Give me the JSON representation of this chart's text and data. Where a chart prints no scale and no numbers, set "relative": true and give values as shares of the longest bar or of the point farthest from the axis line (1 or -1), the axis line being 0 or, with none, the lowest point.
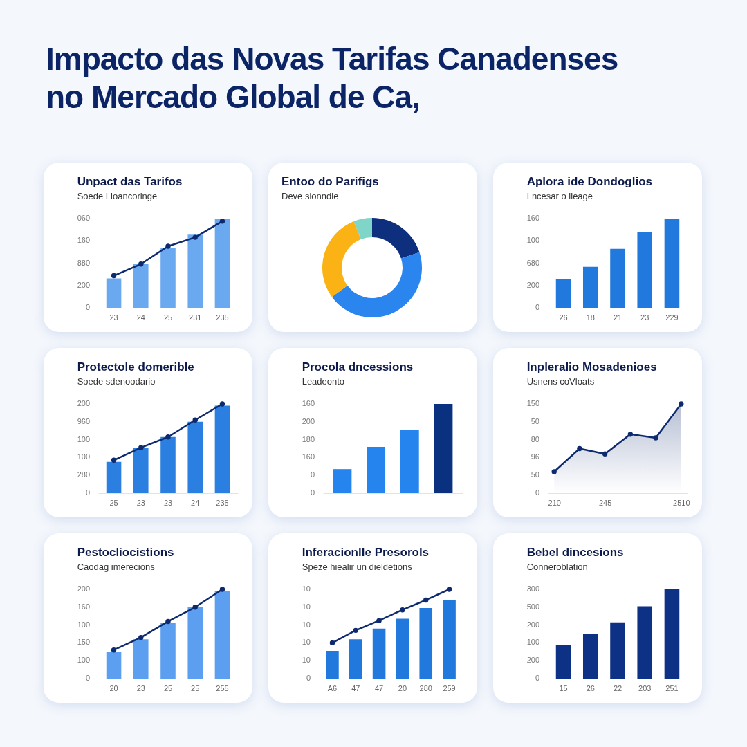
{
  "chart_data": [
    {
      "type": "other",
      "title": "Impacto das Novas Tarifas Canadenses no Mercado Global de Ca,"
    },
    {
      "type": "bar",
      "title": "Unpact das Tarifos",
      "subtitle": "Soede Lloancoringe",
      "categories": [
        "23",
        "24",
        "25",
        "231",
        "235"
      ],
      "relative": true,
      "series": [
        {
          "type": "bar",
          "color": "#6aa8f0",
          "values": [
            0.33,
            0.49,
            0.67,
            0.82,
            1
          ]
        },
        {
          "type": "line",
          "color": "#0d2a6e",
          "values": [
            0.36,
            0.49,
            0.69,
            0.79,
            0.97
          ]
        }
      ],
      "annotations": [
        "0",
        "200",
        "880",
        "160",
        "060"
      ],
      "marker": "circle"
    },
    {
      "type": "donut",
      "title": "Entoo do Parifigs",
      "subtitle": "Deve slonndie",
      "categories": [
        null,
        null,
        null,
        null
      ],
      "values": [
        20,
        45,
        29,
        6
      ],
      "colors": [
        "#0d2f7d",
        "#2a86ee",
        "#fbb214",
        "#7fd6c8"
      ]
    },
    {
      "type": "bar",
      "title": "Aplora ide Dondoglios",
      "subtitle": "Lncesar o lieage",
      "categories": [
        "26",
        "18",
        "21",
        "23",
        "229"
      ],
      "relative": true,
      "values": [
        0.32,
        0.46,
        0.66,
        0.85,
        1
      ],
      "color": "#2279dd",
      "annotations": [
        "0",
        "200",
        "680",
        "100",
        "160"
      ]
    },
    {
      "type": "bar",
      "title": "Protectole domerible",
      "subtitle": "Soede sdenoodario",
      "categories": [
        "25",
        "23",
        "23",
        "24",
        "235"
      ],
      "relative": true,
      "series": [
        {
          "type": "bar",
          "color": "#2a7fe0",
          "values": [
            0.35,
            0.51,
            0.63,
            0.8,
            0.98
          ]
        },
        {
          "type": "line",
          "color": "#0d2a6e",
          "values": [
            0.37,
            0.51,
            0.63,
            0.82,
            1
          ]
        }
      ],
      "annotations": [
        "0",
        "280",
        "100",
        "100",
        "960",
        "200"
      ],
      "marker": "circle"
    },
    {
      "type": "bar",
      "title": "Procola dncessions",
      "subtitle": "Leadeonto",
      "categories": [
        null,
        null,
        null,
        null
      ],
      "relative": true,
      "values": [
        0.27,
        0.52,
        0.71,
        1
      ],
      "colors": [
        "#2684ee",
        "#2684ee",
        "#2684ee",
        "#0a3080"
      ],
      "annotations": [
        "0",
        "0",
        "160",
        "180",
        "200",
        "160"
      ]
    },
    {
      "type": "area",
      "title": "Inpleralio Mosadenioes",
      "subtitle": "Usnens coVloats",
      "categories": [
        "210",
        null,
        "245",
        null,
        null,
        "2510"
      ],
      "relative": true,
      "series": [
        {
          "color": "#0d2a6e",
          "values": [
            0.24,
            0.5,
            0.44,
            0.66,
            0.62,
            1
          ]
        }
      ],
      "annotations": [
        "0",
        "50",
        "96",
        "80",
        "50",
        "150"
      ],
      "marker": "circle"
    },
    {
      "type": "bar",
      "title": "Pestocliocistions",
      "subtitle": "Caodag imerecions",
      "categories": [
        "20",
        "23",
        "25",
        "25",
        "255"
      ],
      "relative": true,
      "series": [
        {
          "type": "bar",
          "color": "#5c9ff0",
          "values": [
            0.3,
            0.44,
            0.62,
            0.8,
            0.98
          ]
        },
        {
          "type": "line",
          "color": "#0d2a6e",
          "values": [
            0.32,
            0.46,
            0.64,
            0.8,
            1
          ]
        }
      ],
      "annotations": [
        "0",
        "100",
        "150",
        "100",
        "160",
        "200"
      ],
      "marker": "circle"
    },
    {
      "type": "bar",
      "title": "Inferacionlle Presorols",
      "subtitle": "Speze hiealir un dieldetions",
      "categories": [
        "A6",
        "47",
        "47",
        "20",
        "280",
        "259"
      ],
      "relative": true,
      "series": [
        {
          "type": "bar",
          "color": "#2279dd",
          "values": [
            0.31,
            0.44,
            0.56,
            0.67,
            0.79,
            0.88
          ]
        },
        {
          "type": "line",
          "color": "#0d2a6e",
          "values": [
            0.4,
            0.54,
            0.65,
            0.77,
            0.88,
            1
          ]
        }
      ],
      "annotations": [
        "0",
        "10",
        "10",
        "10",
        "10",
        "10"
      ],
      "marker": "circle"
    },
    {
      "type": "bar",
      "title": "Bebel dincesions",
      "subtitle": "Conneroblation",
      "categories": [
        "15",
        "26",
        "22",
        "203",
        "251"
      ],
      "relative": true,
      "values": [
        0.38,
        0.5,
        0.63,
        0.81,
        1
      ],
      "color": "#0d3185",
      "annotations": [
        "0",
        "200",
        "100",
        "200",
        "500",
        "300"
      ]
    }
  ]
}
